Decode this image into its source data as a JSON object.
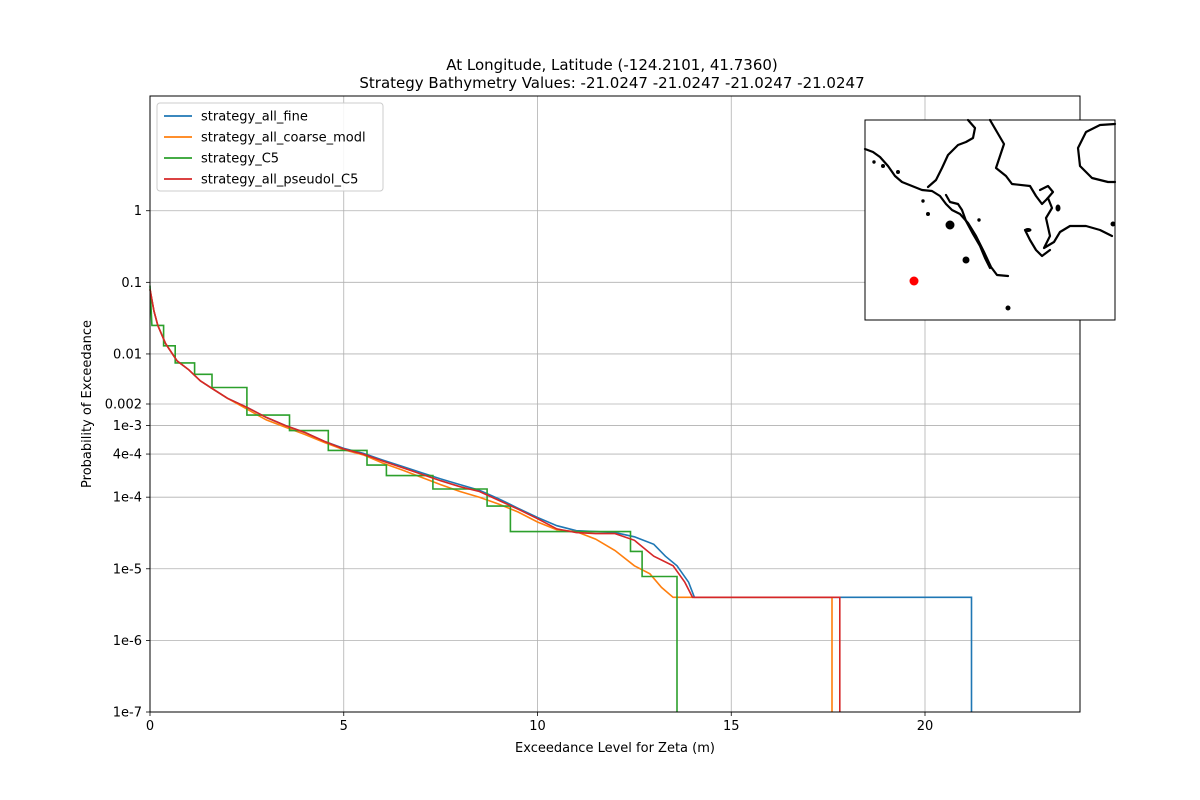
{
  "chart_data": {
    "type": "line",
    "title_line1": "At Longitude, Latitude (-124.2101,  41.7360)",
    "title_line2": "Strategy Bathymetry Values:  -21.0247  -21.0247  -21.0247  -21.0247",
    "xlabel": "Exceedance Level for Zeta (m)",
    "ylabel": "Probability of Exceedance",
    "xlim": [
      0,
      24
    ],
    "ylim": [
      1e-07,
      40
    ],
    "y_scale": "log",
    "grid": true,
    "legend_position": "top-left",
    "x_ticks": [
      {
        "value": 0,
        "label": "0"
      },
      {
        "value": 5,
        "label": "5"
      },
      {
        "value": 10,
        "label": "10"
      },
      {
        "value": 15,
        "label": "15"
      },
      {
        "value": 20,
        "label": "20"
      }
    ],
    "y_ticks": [
      {
        "value": 1,
        "label": "1"
      },
      {
        "value": 0.1,
        "label": "0.1"
      },
      {
        "value": 0.01,
        "label": "0.01"
      },
      {
        "value": 0.002,
        "label": "0.002"
      },
      {
        "value": 0.001,
        "label": "1e-3"
      },
      {
        "value": 0.0004,
        "label": "4e-4"
      },
      {
        "value": 0.0001,
        "label": "1e-4"
      },
      {
        "value": 1e-05,
        "label": "1e-5"
      },
      {
        "value": 1e-06,
        "label": "1e-6"
      },
      {
        "value": 1e-07,
        "label": "1e-7"
      }
    ],
    "series": [
      {
        "name": "strategy_all_fine",
        "color": "#1f77b4",
        "points": [
          [
            0,
            0.08
          ],
          [
            0.1,
            0.04
          ],
          [
            0.2,
            0.025
          ],
          [
            0.4,
            0.014
          ],
          [
            0.7,
            0.008
          ],
          [
            1.0,
            0.006
          ],
          [
            1.3,
            0.0042
          ],
          [
            1.6,
            0.0033
          ],
          [
            2.0,
            0.0024
          ],
          [
            2.5,
            0.0018
          ],
          [
            3.0,
            0.0013
          ],
          [
            3.5,
            0.001
          ],
          [
            4.0,
            0.0008
          ],
          [
            4.5,
            0.0006
          ],
          [
            5.0,
            0.00048
          ],
          [
            5.5,
            0.00041
          ],
          [
            6.0,
            0.00033
          ],
          [
            6.5,
            0.00027
          ],
          [
            7.0,
            0.00022
          ],
          [
            7.5,
            0.00018
          ],
          [
            8.0,
            0.00015
          ],
          [
            8.5,
            0.000125
          ],
          [
            9.0,
            9.5e-05
          ],
          [
            9.5,
            7e-05
          ],
          [
            10.0,
            5.2e-05
          ],
          [
            10.5,
            4e-05
          ],
          [
            11.0,
            3.4e-05
          ],
          [
            11.5,
            3.3e-05
          ],
          [
            12.0,
            3.2e-05
          ],
          [
            12.5,
            2.8e-05
          ],
          [
            13.0,
            2.2e-05
          ],
          [
            13.3,
            1.5e-05
          ],
          [
            13.6,
            1.1e-05
          ],
          [
            13.9,
            6.5e-06
          ],
          [
            14.05,
            4e-06
          ],
          [
            21.2,
            4e-06
          ],
          [
            21.2,
            1e-07
          ]
        ]
      },
      {
        "name": "strategy_all_coarse_modl",
        "color": "#ff7f0e",
        "points": [
          [
            0,
            0.08
          ],
          [
            0.1,
            0.04
          ],
          [
            0.2,
            0.025
          ],
          [
            0.4,
            0.014
          ],
          [
            0.7,
            0.008
          ],
          [
            1.0,
            0.006
          ],
          [
            1.3,
            0.0042
          ],
          [
            1.6,
            0.0033
          ],
          [
            2.0,
            0.0024
          ],
          [
            2.5,
            0.0017
          ],
          [
            3.0,
            0.0012
          ],
          [
            3.5,
            0.00095
          ],
          [
            4.0,
            0.00075
          ],
          [
            4.5,
            0.00058
          ],
          [
            5.0,
            0.00046
          ],
          [
            5.5,
            0.00039
          ],
          [
            6.0,
            0.0003
          ],
          [
            6.5,
            0.00024
          ],
          [
            7.0,
            0.00019
          ],
          [
            7.5,
            0.00015
          ],
          [
            8.0,
            0.00012
          ],
          [
            8.5,
            0.0001
          ],
          [
            9.0,
            8e-05
          ],
          [
            9.5,
            6.2e-05
          ],
          [
            10.0,
            4.5e-05
          ],
          [
            10.5,
            3.5e-05
          ],
          [
            11.0,
            3.3e-05
          ],
          [
            11.5,
            2.6e-05
          ],
          [
            12.0,
            1.8e-05
          ],
          [
            12.5,
            1.1e-05
          ],
          [
            12.9,
            8.5e-06
          ],
          [
            13.2,
            5.5e-06
          ],
          [
            13.5,
            4e-06
          ],
          [
            17.6,
            4e-06
          ],
          [
            17.6,
            1e-07
          ]
        ]
      },
      {
        "name": "strategy_C5",
        "color": "#2ca02c",
        "points": [
          [
            0,
            0.09
          ],
          [
            0.05,
            0.025
          ],
          [
            0.35,
            0.025
          ],
          [
            0.35,
            0.013
          ],
          [
            0.65,
            0.013
          ],
          [
            0.65,
            0.0075
          ],
          [
            1.15,
            0.0075
          ],
          [
            1.15,
            0.0052
          ],
          [
            1.6,
            0.0052
          ],
          [
            1.6,
            0.0034
          ],
          [
            2.5,
            0.0034
          ],
          [
            2.5,
            0.0014
          ],
          [
            3.6,
            0.0014
          ],
          [
            3.6,
            0.00085
          ],
          [
            4.6,
            0.00085
          ],
          [
            4.6,
            0.00045
          ],
          [
            5.6,
            0.00045
          ],
          [
            5.6,
            0.00028
          ],
          [
            6.1,
            0.00028
          ],
          [
            6.1,
            0.0002
          ],
          [
            7.3,
            0.0002
          ],
          [
            7.3,
            0.00013
          ],
          [
            8.7,
            0.00013
          ],
          [
            8.7,
            7.5e-05
          ],
          [
            9.3,
            7.5e-05
          ],
          [
            9.3,
            3.3e-05
          ],
          [
            12.4,
            3.3e-05
          ],
          [
            12.4,
            1.75e-05
          ],
          [
            12.7,
            1.75e-05
          ],
          [
            12.7,
            7.8e-06
          ],
          [
            13.6,
            7.8e-06
          ],
          [
            13.6,
            1e-07
          ]
        ]
      },
      {
        "name": "strategy_all_pseudol_C5",
        "color": "#d62728",
        "points": [
          [
            0,
            0.08
          ],
          [
            0.1,
            0.04
          ],
          [
            0.2,
            0.025
          ],
          [
            0.4,
            0.014
          ],
          [
            0.7,
            0.008
          ],
          [
            1.0,
            0.006
          ],
          [
            1.3,
            0.0042
          ],
          [
            1.6,
            0.0033
          ],
          [
            2.0,
            0.0024
          ],
          [
            2.5,
            0.0018
          ],
          [
            3.0,
            0.0013
          ],
          [
            3.5,
            0.001
          ],
          [
            4.0,
            0.0008
          ],
          [
            4.5,
            0.0006
          ],
          [
            5.0,
            0.00047
          ],
          [
            5.5,
            0.0004
          ],
          [
            6.0,
            0.00032
          ],
          [
            6.5,
            0.00026
          ],
          [
            7.0,
            0.00021
          ],
          [
            7.5,
            0.00017
          ],
          [
            8.0,
            0.00014
          ],
          [
            8.5,
            0.00012
          ],
          [
            9.0,
            9e-05
          ],
          [
            9.5,
            6.8e-05
          ],
          [
            10.0,
            5e-05
          ],
          [
            10.5,
            3.6e-05
          ],
          [
            11.0,
            3.2e-05
          ],
          [
            11.5,
            3.1e-05
          ],
          [
            12.0,
            3.1e-05
          ],
          [
            12.5,
            2.5e-05
          ],
          [
            13.0,
            1.5e-05
          ],
          [
            13.5,
            1.1e-05
          ],
          [
            13.8,
            6.5e-06
          ],
          [
            14.0,
            4e-06
          ],
          [
            17.8,
            4e-06
          ],
          [
            17.8,
            1e-07
          ]
        ]
      }
    ]
  },
  "inset_map": {
    "marker_color": "#ff0000"
  }
}
